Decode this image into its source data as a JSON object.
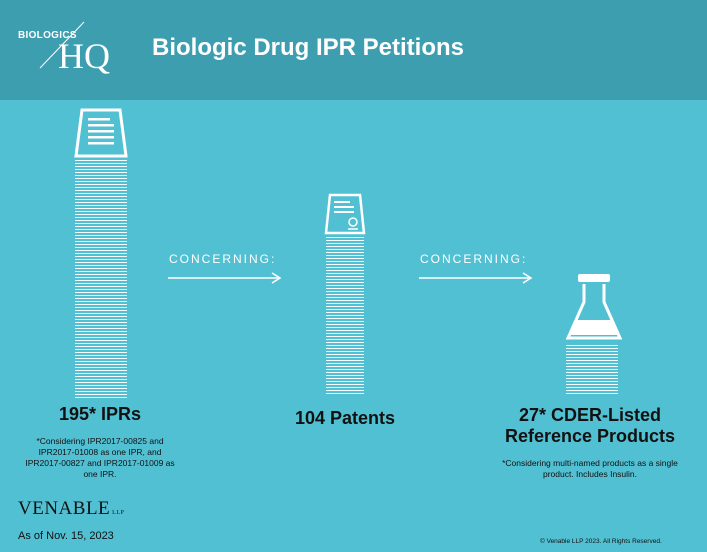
{
  "logo": {
    "top_text": "BIOLOGICS",
    "hq_text": "HQ"
  },
  "title": "Biologic Drug IPR Petitions",
  "concerning_label": "CONCERNING:",
  "columns": [
    {
      "label": "195* IPRs",
      "footnote_lines": [
        "*Considering IPR2017-00825 and",
        "IPR2017-01008 as one IPR, and",
        "IPR2017-00827 and IPR2017-01009 as",
        "one IPR."
      ]
    },
    {
      "label": "104 Patents",
      "footnote_lines": []
    },
    {
      "label_lines": [
        "27* CDER-Listed",
        "Reference Products"
      ],
      "footnote_lines": [
        "*Considering multi-named products as a single",
        "product.  Includes Insulin."
      ]
    }
  ],
  "firm": {
    "name": "VENABLE",
    "suffix": "LLP"
  },
  "as_of": "As of Nov. 15, 2023",
  "copyright": "© Venable LLP 2023. All Rights Reserved.",
  "colors": {
    "background": "#52c0d3",
    "header": "#3d9eb0",
    "text": "#111111",
    "icon": "#ffffff"
  },
  "icons": [
    "document-stack-icon",
    "patent-document-icon",
    "flask-icon",
    "arrow-right-icon"
  ]
}
